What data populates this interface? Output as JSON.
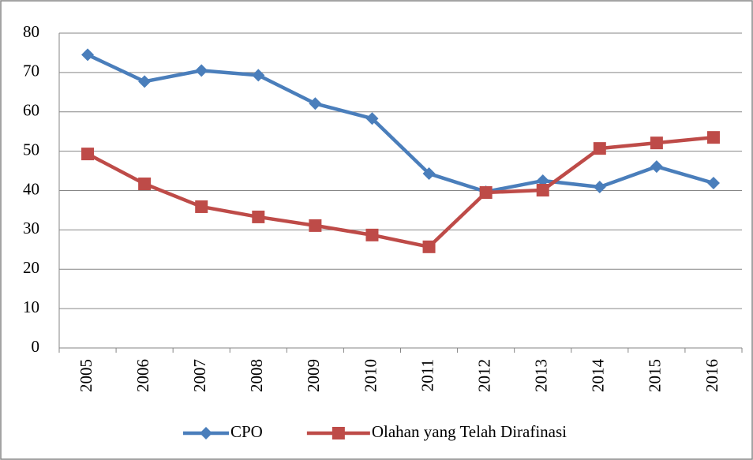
{
  "chart_data": {
    "type": "line",
    "categories": [
      "2005",
      "2006",
      "2007",
      "2008",
      "2009",
      "2010",
      "2011",
      "2012",
      "2013",
      "2014",
      "2015",
      "2016"
    ],
    "series": [
      {
        "name": "CPO",
        "color": "#4a7ebb",
        "marker": "diamond",
        "values": [
          74.5,
          67.7,
          70.5,
          69.3,
          62.1,
          58.3,
          44.3,
          39.7,
          42.5,
          40.9,
          46.1,
          41.9
        ]
      },
      {
        "name": "Olahan yang Telah Dirafinasi",
        "color": "#be4b48",
        "marker": "square",
        "values": [
          49.3,
          41.7,
          35.9,
          33.3,
          31.1,
          28.7,
          25.7,
          39.5,
          40.1,
          50.7,
          52.1,
          53.5
        ]
      }
    ],
    "ylim": [
      0,
      80
    ],
    "yticks": [
      0,
      10,
      20,
      30,
      40,
      50,
      60,
      70,
      80
    ],
    "grid": true,
    "legend": "bottom"
  }
}
